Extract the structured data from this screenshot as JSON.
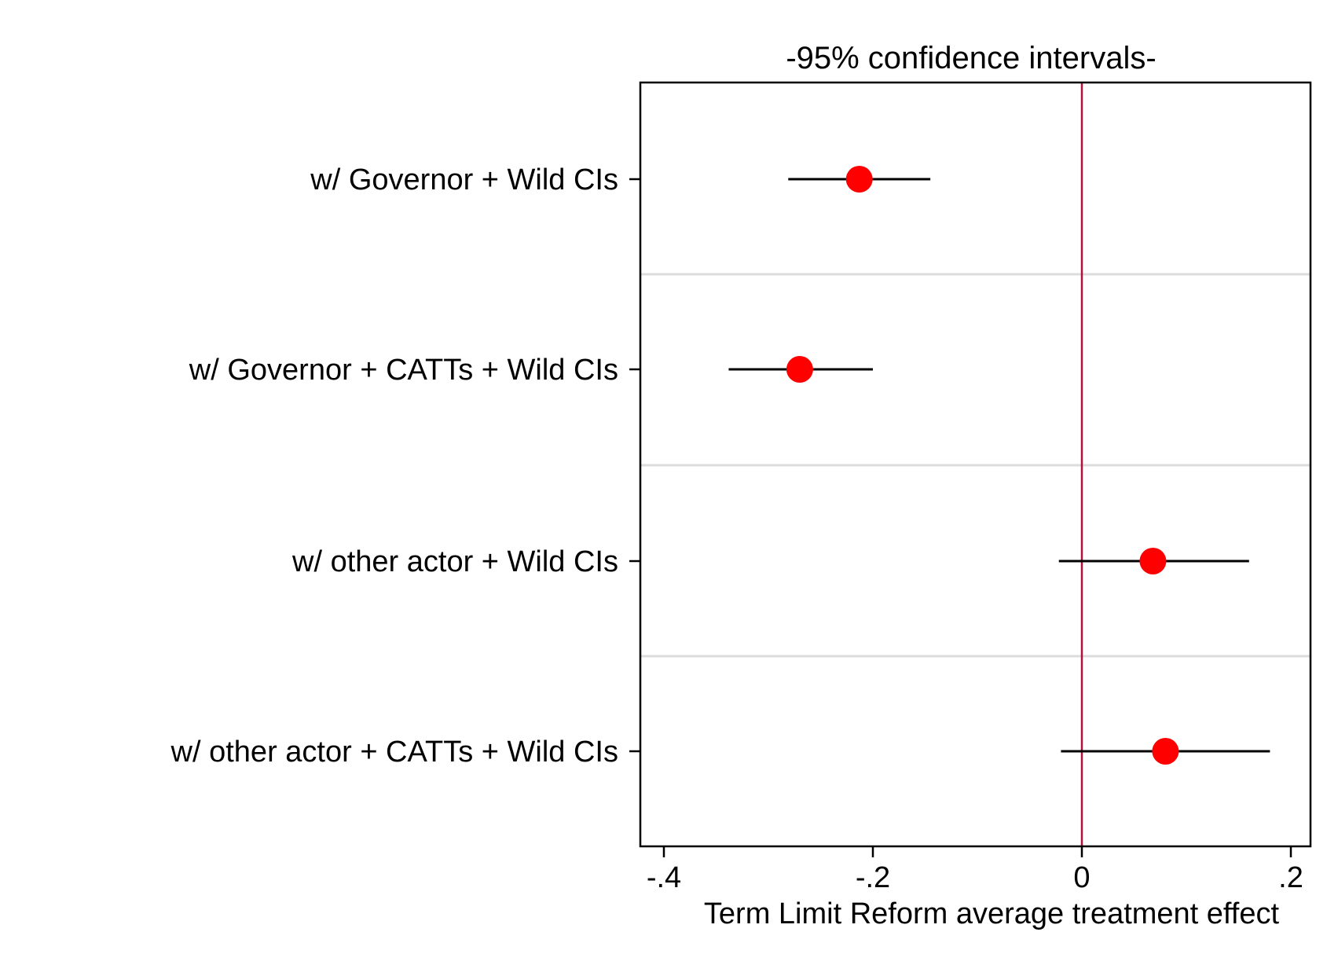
{
  "chart_data": {
    "type": "scatter",
    "subtype": "coefficient-plot",
    "title": "-95% confidence intervals-",
    "xlabel": "Term Limit Reform average treatment effect",
    "ylabel": "",
    "xlim": [
      -0.42,
      0.22
    ],
    "xticks": [
      -0.4,
      -0.2,
      0,
      0.2
    ],
    "xtick_labels": [
      "-.4",
      "-.2",
      "0",
      ".2"
    ],
    "reference_line": {
      "x": 0,
      "color": "#b0103a"
    },
    "grid": "horizontal separators between rows",
    "marker_color": "#ff0000",
    "ci_color": "#000000",
    "rows": [
      {
        "label": "w/ Governor + Wild CIs",
        "estimate": -0.213,
        "ci_low": -0.281,
        "ci_high": -0.145
      },
      {
        "label": "w/ Governor + CATTs + Wild CIs",
        "estimate": -0.27,
        "ci_low": -0.338,
        "ci_high": -0.2
      },
      {
        "label": "w/ other actor + Wild CIs",
        "estimate": 0.068,
        "ci_low": -0.022,
        "ci_high": 0.16
      },
      {
        "label": "w/ other actor + CATTs + Wild CIs",
        "estimate": 0.08,
        "ci_low": -0.02,
        "ci_high": 0.18
      }
    ]
  }
}
